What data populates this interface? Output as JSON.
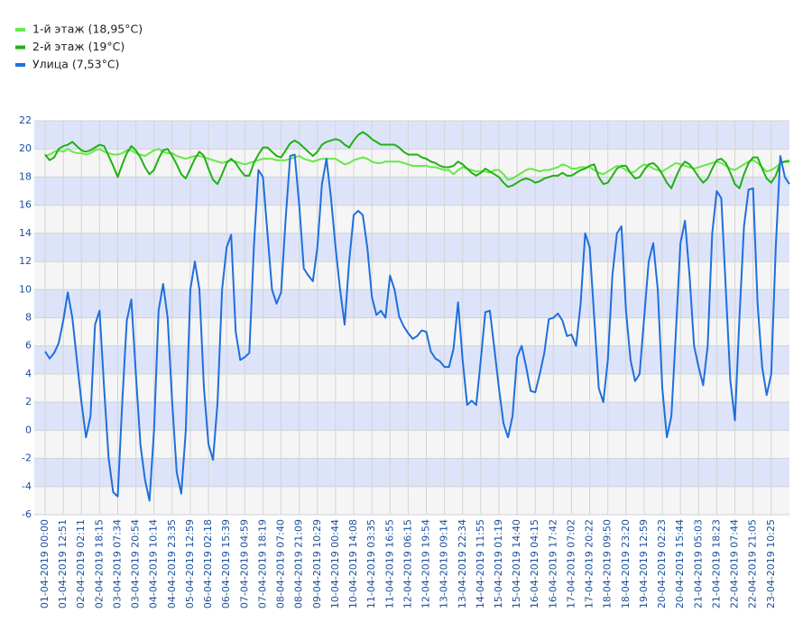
{
  "chart_data": {
    "type": "line",
    "categories": [
      "01-04-2019 00:00",
      null,
      null,
      null,
      "01-04-2019 12:51",
      null,
      null,
      null,
      "02-04-2019 02:11",
      null,
      null,
      null,
      "02-04-2019 18:15",
      null,
      null,
      null,
      "03-04-2019 07:34",
      null,
      null,
      null,
      "03-04-2019 20:54",
      null,
      null,
      null,
      "04-04-2019 10:14",
      null,
      null,
      null,
      "04-04-2019 23:35",
      null,
      null,
      null,
      "05-04-2019 12:59",
      null,
      null,
      null,
      "06-04-2019 02:18",
      null,
      null,
      null,
      "06-04-2019 15:39",
      null,
      null,
      null,
      "07-04-2019 04:59",
      null,
      null,
      null,
      "07-04-2019 18:19",
      null,
      null,
      null,
      "08-04-2019 07:40",
      null,
      null,
      null,
      "08-04-2019 21:09",
      null,
      null,
      null,
      "09-04-2019 10:29",
      null,
      null,
      null,
      "10-04-2019 00:44",
      null,
      null,
      null,
      "10-04-2019 14:08",
      null,
      null,
      null,
      "11-04-2019 03:35",
      null,
      null,
      null,
      "11-04-2019 16:55",
      null,
      null,
      null,
      "12-04-2019 06:15",
      null,
      null,
      null,
      "12-04-2019 19:54",
      null,
      null,
      null,
      "13-04-2019 09:14",
      null,
      null,
      null,
      "13-04-2019 22:34",
      null,
      null,
      null,
      "14-04-2019 11:55",
      null,
      null,
      null,
      "15-04-2019 01:19",
      null,
      null,
      null,
      "15-04-2019 14:40",
      null,
      null,
      null,
      "16-04-2019 04:15",
      null,
      null,
      null,
      "16-04-2019 17:42",
      null,
      null,
      null,
      "17-04-2019 07:02",
      null,
      null,
      null,
      "17-04-2019 20:22",
      null,
      null,
      null,
      "18-04-2019 09:50",
      null,
      null,
      null,
      "18-04-2019 23:20",
      null,
      null,
      null,
      "19-04-2019 12:59",
      null,
      null,
      null,
      "20-04-2019 02:23",
      null,
      null,
      null,
      "20-04-2019 15:44",
      null,
      null,
      null,
      "21-04-2019 05:03",
      null,
      null,
      null,
      "21-04-2019 18:23",
      null,
      null,
      null,
      "22-04-2019 07:44",
      null,
      null,
      null,
      "22-04-2019 21:05",
      null,
      null,
      null,
      "23-04-2019 10:25",
      null,
      null,
      null,
      null
    ],
    "series": [
      {
        "name": "1-й этаж (18,95°C)",
        "color": "#66e84a",
        "values": [
          19.5,
          19.6,
          19.8,
          19.9,
          19.8,
          20.0,
          19.8,
          19.7,
          19.7,
          19.6,
          19.7,
          19.9,
          20.0,
          19.8,
          19.7,
          19.6,
          19.6,
          19.7,
          19.9,
          19.9,
          19.7,
          19.6,
          19.5,
          19.7,
          19.9,
          20.0,
          19.8,
          19.7,
          19.7,
          19.5,
          19.4,
          19.3,
          19.4,
          19.5,
          19.5,
          19.4,
          19.3,
          19.2,
          19.1,
          19.0,
          19.1,
          19.2,
          19.1,
          19.0,
          18.9,
          19.0,
          19.1,
          19.2,
          19.3,
          19.3,
          19.3,
          19.2,
          19.2,
          19.2,
          19.3,
          19.4,
          19.5,
          19.3,
          19.2,
          19.1,
          19.2,
          19.3,
          19.3,
          19.3,
          19.3,
          19.1,
          18.9,
          19.0,
          19.2,
          19.3,
          19.4,
          19.3,
          19.1,
          19.0,
          19.0,
          19.1,
          19.1,
          19.1,
          19.1,
          19.0,
          18.9,
          18.8,
          18.8,
          18.8,
          18.8,
          18.7,
          18.7,
          18.6,
          18.5,
          18.5,
          18.2,
          18.5,
          18.7,
          18.6,
          18.5,
          18.4,
          18.4,
          18.4,
          18.3,
          18.5,
          18.5,
          18.2,
          17.8,
          17.9,
          18.1,
          18.3,
          18.5,
          18.6,
          18.5,
          18.4,
          18.5,
          18.5,
          18.6,
          18.7,
          18.9,
          18.8,
          18.6,
          18.6,
          18.7,
          18.7,
          18.7,
          18.5,
          18.3,
          18.2,
          18.4,
          18.6,
          18.8,
          18.7,
          18.5,
          18.3,
          18.4,
          18.7,
          18.9,
          18.8,
          18.6,
          18.5,
          18.4,
          18.6,
          18.8,
          19.0,
          18.9,
          18.8,
          18.7,
          18.6,
          18.7,
          18.8,
          18.9,
          19.0,
          19.1,
          19.0,
          18.8,
          18.6,
          18.5,
          18.7,
          18.9,
          19.1,
          19.2,
          19.0,
          18.7,
          18.4,
          18.5,
          18.7,
          19.0,
          19.1,
          19.2
        ]
      },
      {
        "name": "2-й этаж (19°C)",
        "color": "#1fb212",
        "values": [
          19.6,
          19.2,
          19.4,
          20.0,
          20.2,
          20.3,
          20.5,
          20.2,
          19.9,
          19.8,
          19.9,
          20.1,
          20.3,
          20.2,
          19.5,
          18.8,
          18.0,
          18.9,
          19.7,
          20.2,
          19.9,
          19.4,
          18.7,
          18.2,
          18.5,
          19.3,
          19.9,
          20.0,
          19.5,
          18.9,
          18.2,
          17.9,
          18.6,
          19.3,
          19.8,
          19.5,
          18.6,
          17.8,
          17.5,
          18.2,
          19.0,
          19.3,
          19.0,
          18.5,
          18.1,
          18.1,
          19.0,
          19.6,
          20.1,
          20.1,
          19.8,
          19.5,
          19.4,
          19.9,
          20.4,
          20.6,
          20.4,
          20.1,
          19.8,
          19.5,
          19.8,
          20.3,
          20.5,
          20.6,
          20.7,
          20.6,
          20.3,
          20.1,
          20.6,
          21.0,
          21.2,
          21.0,
          20.7,
          20.5,
          20.3,
          20.3,
          20.3,
          20.3,
          20.1,
          19.8,
          19.6,
          19.6,
          19.6,
          19.4,
          19.3,
          19.1,
          19.0,
          18.8,
          18.7,
          18.7,
          18.8,
          19.1,
          18.9,
          18.6,
          18.3,
          18.1,
          18.3,
          18.6,
          18.4,
          18.2,
          18.0,
          17.6,
          17.3,
          17.4,
          17.6,
          17.8,
          17.9,
          17.8,
          17.6,
          17.7,
          17.9,
          18.0,
          18.1,
          18.1,
          18.3,
          18.1,
          18.1,
          18.3,
          18.5,
          18.6,
          18.8,
          18.9,
          18.0,
          17.5,
          17.6,
          18.1,
          18.6,
          18.8,
          18.8,
          18.3,
          17.9,
          18.0,
          18.5,
          18.9,
          19.0,
          18.7,
          18.2,
          17.6,
          17.2,
          18.0,
          18.7,
          19.1,
          18.9,
          18.5,
          18.0,
          17.6,
          17.9,
          18.6,
          19.2,
          19.3,
          19.0,
          18.3,
          17.5,
          17.2,
          18.2,
          19.0,
          19.4,
          19.4,
          18.6,
          17.9,
          17.6,
          18.1,
          19.0,
          19.1,
          19.1
        ]
      },
      {
        "name": "Улица (7,53°C)",
        "color": "#1f6fdc",
        "values": [
          5.6,
          5.1,
          5.5,
          6.2,
          7.8,
          9.8,
          8.0,
          5.0,
          2.0,
          -0.5,
          1.0,
          7.5,
          8.5,
          3.0,
          -2.0,
          -4.4,
          -4.7,
          2.0,
          7.8,
          9.3,
          4.0,
          -1.0,
          -3.5,
          -5.0,
          0.0,
          8.5,
          10.4,
          8.0,
          2.0,
          -3.0,
          -4.5,
          0.0,
          10.0,
          12.0,
          10.0,
          3.0,
          -1.0,
          -2.1,
          2.0,
          10.0,
          13.0,
          13.9,
          7.0,
          5.0,
          5.2,
          5.5,
          13.0,
          18.5,
          18.0,
          14.0,
          10.0,
          9.0,
          9.8,
          15.0,
          19.5,
          19.6,
          16.0,
          11.5,
          11.0,
          10.6,
          13.0,
          17.5,
          19.3,
          16.5,
          13.0,
          10.0,
          7.5,
          12.0,
          15.3,
          15.6,
          15.3,
          13.0,
          9.5,
          8.2,
          8.5,
          8.0,
          11.0,
          10.0,
          8.1,
          7.4,
          6.9,
          6.5,
          6.7,
          7.1,
          7.0,
          5.6,
          5.1,
          4.9,
          4.5,
          4.5,
          5.8,
          9.1,
          5.0,
          1.8,
          2.1,
          1.8,
          5.0,
          8.4,
          8.5,
          5.8,
          3.0,
          0.5,
          -0.5,
          1.0,
          5.2,
          6.0,
          4.5,
          2.8,
          2.7,
          4.0,
          5.5,
          7.9,
          8.0,
          8.3,
          7.8,
          6.7,
          6.8,
          6.0,
          9.0,
          14.0,
          13.0,
          8.0,
          3.0,
          2.0,
          5.0,
          11.0,
          14.0,
          14.5,
          8.5,
          5.0,
          3.5,
          4.0,
          8.0,
          12.0,
          13.3,
          10.0,
          3.0,
          -0.5,
          1.0,
          7.0,
          13.3,
          14.9,
          11.0,
          6.0,
          4.5,
          3.2,
          6.0,
          14.0,
          17.0,
          16.5,
          10.0,
          3.5,
          0.7,
          8.0,
          14.5,
          17.1,
          17.2,
          9.0,
          4.5,
          2.5,
          4.0,
          13.0,
          19.5,
          18.0,
          17.5
        ]
      }
    ],
    "ylim": [
      -6,
      22
    ],
    "yticks": [
      -6,
      -4,
      -2,
      0,
      2,
      4,
      6,
      8,
      10,
      12,
      14,
      16,
      18,
      20,
      22
    ],
    "grid": true,
    "legend": "top-left"
  }
}
